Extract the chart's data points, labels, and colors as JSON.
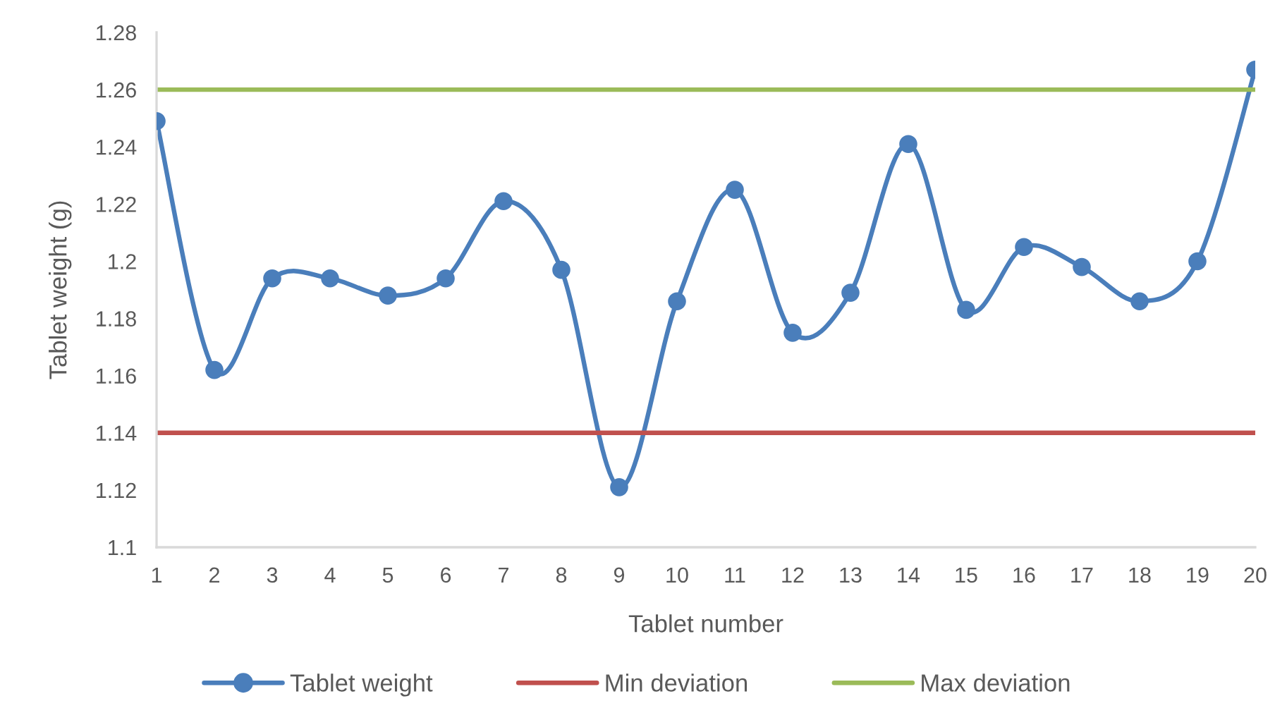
{
  "chart_data": {
    "type": "line",
    "xlabel": "Tablet number",
    "ylabel": "Tablet weight (g)",
    "categories": [
      "1",
      "2",
      "3",
      "4",
      "5",
      "6",
      "7",
      "8",
      "9",
      "10",
      "11",
      "12",
      "13",
      "14",
      "15",
      "16",
      "17",
      "18",
      "19",
      "20"
    ],
    "series": [
      {
        "name": "Tablet weight",
        "color": "#4a7ebb",
        "marker": "circle",
        "values": [
          1.249,
          1.162,
          1.194,
          1.194,
          1.188,
          1.194,
          1.221,
          1.197,
          1.121,
          1.186,
          1.225,
          1.175,
          1.189,
          1.241,
          1.183,
          1.205,
          1.198,
          1.186,
          1.2,
          1.267
        ]
      },
      {
        "name": "Min deviation",
        "color": "#c0504d",
        "values": [
          1.14,
          1.14,
          1.14,
          1.14,
          1.14,
          1.14,
          1.14,
          1.14,
          1.14,
          1.14,
          1.14,
          1.14,
          1.14,
          1.14,
          1.14,
          1.14,
          1.14,
          1.14,
          1.14,
          1.14
        ]
      },
      {
        "name": "Max deviation",
        "color": "#9bbb59",
        "values": [
          1.26,
          1.26,
          1.26,
          1.26,
          1.26,
          1.26,
          1.26,
          1.26,
          1.26,
          1.26,
          1.26,
          1.26,
          1.26,
          1.26,
          1.26,
          1.26,
          1.26,
          1.26,
          1.26,
          1.26
        ]
      }
    ],
    "ylim": [
      1.1,
      1.28
    ],
    "yticks": [
      1.1,
      1.12,
      1.14,
      1.16,
      1.18,
      1.2,
      1.22,
      1.24,
      1.26,
      1.28
    ],
    "legend": "bottom"
  }
}
